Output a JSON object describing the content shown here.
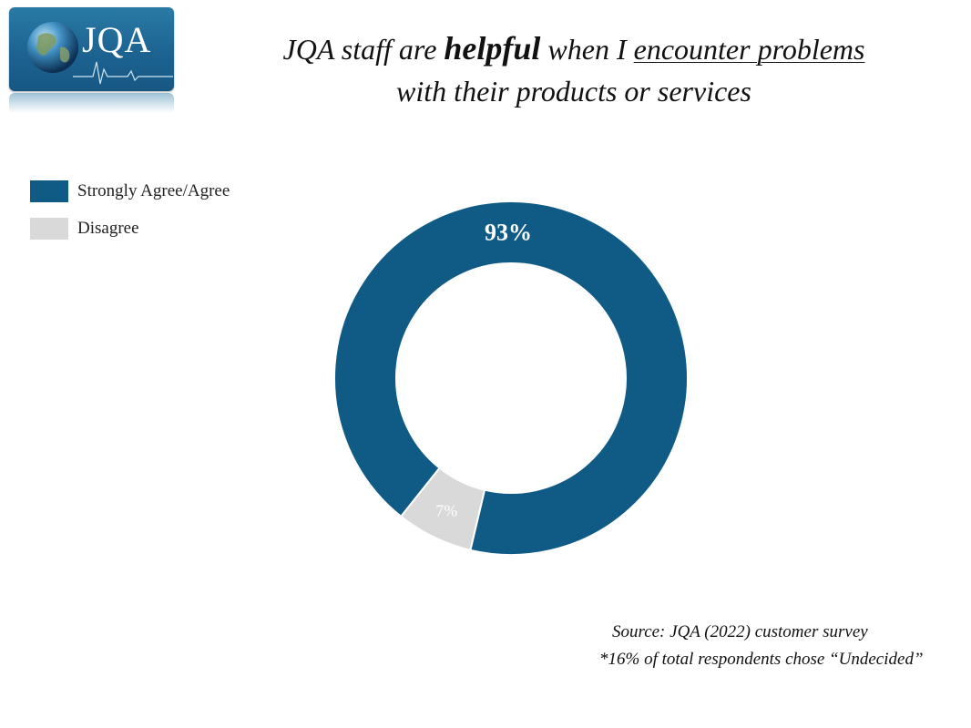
{
  "logo": {
    "text": "JQA"
  },
  "title": {
    "part1": "JQA staff are ",
    "bold": "helpful",
    "part2": " when I ",
    "underlined": "encounter problems ",
    "line2": "with their products or services"
  },
  "colors": {
    "agree": "#0f5b86",
    "disagree": "#d9d9d9",
    "logo": "#1c6391"
  },
  "chart_data": {
    "type": "pie",
    "style": "donut",
    "categories": [
      "Strongly Agree/Agree",
      "Disagree"
    ],
    "values": [
      93,
      7
    ],
    "data_labels": [
      "93%",
      "7%"
    ],
    "legend_placement": "top-left"
  },
  "source": "Source: JQA (2022) customer survey",
  "footnote": "*16% of total respondents chose “Undecided”"
}
